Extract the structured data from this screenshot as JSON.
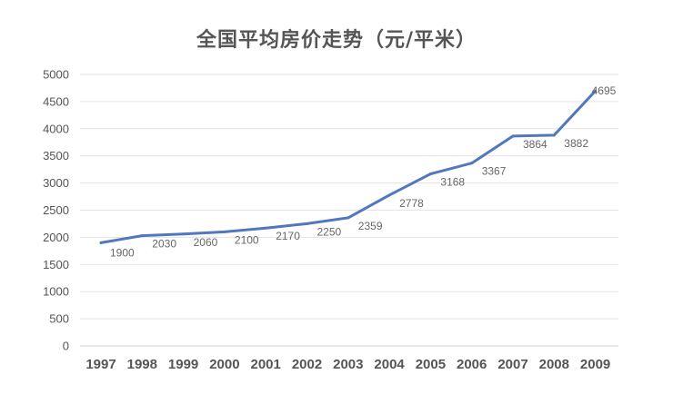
{
  "chart_data": {
    "type": "line",
    "title": "全国平均房价走势（元/平米）",
    "xlabel": "",
    "ylabel": "",
    "categories": [
      "1997",
      "1998",
      "1999",
      "2000",
      "2001",
      "2002",
      "2003",
      "2004",
      "2005",
      "2006",
      "2007",
      "2008",
      "2009"
    ],
    "series": [
      {
        "values": [
          1900,
          2030,
          2060,
          2100,
          2170,
          2250,
          2359,
          2778,
          3168,
          3367,
          3864,
          3882,
          4695
        ],
        "color": "#5177bd"
      }
    ],
    "data_labels": [
      "1900",
      "2030",
      "2060",
      "2100",
      "2170",
      "2250",
      "2359",
      "2778",
      "3168",
      "3367",
      "3864",
      "3882",
      "4695"
    ],
    "yticks": [
      "0",
      "500",
      "1000",
      "1500",
      "2000",
      "2500",
      "3000",
      "3500",
      "4000",
      "4500",
      "5000"
    ],
    "ylim": [
      0,
      5000
    ],
    "grid": true,
    "legend": "none"
  }
}
